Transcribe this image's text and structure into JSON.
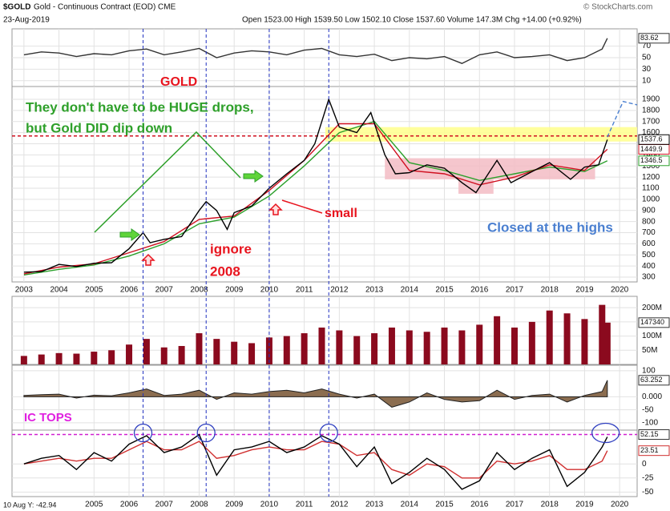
{
  "header": {
    "symbol": "$GOLD",
    "name": "Gold - Continuous Contract (EOD) CME",
    "date": "23-Aug-2019",
    "quote": "Open 1523.00 High 1539.50 Low 1502.10 Close 1537.60 Volume 147.3M Chg +14.00 (+0.92%)",
    "credit": "© StockCharts.com"
  },
  "footer": "10 Aug Y: -42.94",
  "annotations": [
    {
      "text": "GOLD",
      "color": "#e8141e"
    },
    {
      "text": "They don't have to be HUGE drops,",
      "color": "#2ea02a"
    },
    {
      "text": "but Gold DID dip down",
      "color": "#2ea02a"
    },
    {
      "text": "small",
      "color": "#e8141e"
    },
    {
      "text": "ignore",
      "color": "#e8141e"
    },
    {
      "text": "2008",
      "color": "#e8141e"
    },
    {
      "text": "Closed at the highs",
      "color": "#4a7fd0"
    },
    {
      "text": "IC TOPS",
      "color": "#e020e0"
    }
  ],
  "chart_data": [
    {
      "type": "line",
      "xlim": [
        2002.66,
        2020.5
      ],
      "ylim": [
        0,
        100
      ],
      "yticks": [
        10,
        30,
        50,
        70
      ],
      "x": [
        2003,
        2003.5,
        2004,
        2004.5,
        2005,
        2005.5,
        2006,
        2006.5,
        2007,
        2007.5,
        2008,
        2008.5,
        2009,
        2009.5,
        2010,
        2010.5,
        2011,
        2011.5,
        2012,
        2012.5,
        2013,
        2013.5,
        2014,
        2014.5,
        2015,
        2015.5,
        2016,
        2016.5,
        2017,
        2017.5,
        2018,
        2018.5,
        2019,
        2019.5,
        2019.65
      ],
      "series": [
        {
          "color": "#333333",
          "tag_color": "#333333",
          "values": [
            55,
            60,
            58,
            52,
            57,
            55,
            62,
            65,
            55,
            60,
            66,
            50,
            58,
            62,
            60,
            55,
            63,
            66,
            55,
            52,
            56,
            45,
            50,
            48,
            52,
            40,
            55,
            60,
            50,
            52,
            55,
            45,
            50,
            65,
            83.62
          ]
        }
      ]
    },
    {
      "type": "line",
      "xlim": [
        2002.66,
        2020.5
      ],
      "ylim": [
        257,
        2015
      ],
      "yticks": [
        300,
        400,
        500,
        600,
        700,
        800,
        900,
        1000,
        1100,
        1200,
        1300,
        1400,
        1500,
        1600,
        1700,
        1800,
        1900
      ],
      "xticks": [
        2003,
        2004,
        2005,
        2006,
        2007,
        2008,
        2009,
        2010,
        2011,
        2012,
        2013,
        2014,
        2015,
        2016,
        2017,
        2018,
        2019,
        2020
      ],
      "zones": [
        {
          "x": [
            2011.6,
            2020.5
          ],
          "y": [
            1520,
            1650
          ],
          "color": "#ffff8c"
        },
        {
          "x": [
            2013.3,
            2019.3
          ],
          "y": [
            1180,
            1370
          ],
          "color": "#f3bcc4"
        },
        {
          "x": [
            2015.4,
            2016.4
          ],
          "y": [
            1050,
            1180
          ],
          "color": "#f3bcc4"
        }
      ],
      "hline": {
        "value": 1570,
        "color": "#d01020"
      },
      "event_lines": [
        2006.4,
        2008.2,
        2010.0,
        2011.7
      ],
      "series": [
        {
          "color": "#2ca02c",
          "tag_color": "#2ca02c",
          "x": [
            2003,
            2004,
            2005,
            2006,
            2007,
            2008,
            2009,
            2010,
            2011,
            2012,
            2013,
            2014,
            2015,
            2016,
            2017,
            2018,
            2019,
            2019.65
          ],
          "values": [
            320,
            370,
            410,
            490,
            600,
            780,
            840,
            1030,
            1300,
            1600,
            1700,
            1330,
            1260,
            1170,
            1230,
            1290,
            1250,
            1346.5
          ]
        },
        {
          "color": "#d01020",
          "tag_color": "#d01020",
          "x": [
            2003,
            2004,
            2005,
            2006,
            2007,
            2008,
            2009,
            2010,
            2011,
            2012,
            2013,
            2014,
            2015,
            2016,
            2017,
            2018,
            2019,
            2019.65
          ],
          "values": [
            330,
            390,
            420,
            520,
            620,
            820,
            850,
            1080,
            1350,
            1680,
            1680,
            1260,
            1230,
            1130,
            1200,
            1310,
            1260,
            1449.9
          ]
        },
        {
          "color": "#000000",
          "tag_color": "#000000",
          "x": [
            2003,
            2003.5,
            2004,
            2004.5,
            2005,
            2005.5,
            2006,
            2006.4,
            2006.6,
            2007,
            2007.5,
            2008,
            2008.2,
            2008.5,
            2008.8,
            2009,
            2009.5,
            2010,
            2010.5,
            2011,
            2011.3,
            2011.7,
            2012,
            2012.5,
            2012.9,
            2013.3,
            2013.6,
            2014,
            2014.5,
            2015,
            2015.5,
            2015.9,
            2016.5,
            2016.9,
            2017.5,
            2018,
            2018.6,
            2019,
            2019.4,
            2019.65
          ],
          "values": [
            345,
            350,
            415,
            395,
            425,
            430,
            555,
            700,
            610,
            640,
            665,
            900,
            980,
            900,
            730,
            880,
            940,
            1100,
            1230,
            1350,
            1500,
            1900,
            1650,
            1600,
            1780,
            1400,
            1230,
            1240,
            1310,
            1280,
            1150,
            1060,
            1350,
            1150,
            1250,
            1330,
            1180,
            1290,
            1310,
            1537.6
          ]
        },
        {
          "color": "#4a7fd0",
          "dash": true,
          "x": [
            2019.65,
            2020.1,
            2020.5
          ],
          "values": [
            1560,
            1880,
            1850
          ]
        }
      ]
    },
    {
      "type": "bar",
      "xlim": [
        2002.66,
        2020.5
      ],
      "ylim": [
        0,
        240000000
      ],
      "yticks": [
        {
          "value": 50000000,
          "label": "50M"
        },
        {
          "value": 100000000,
          "label": "100M"
        },
        {
          "value": 150000000,
          "label": "150M"
        },
        {
          "value": 200000000,
          "label": "200M"
        }
      ],
      "last_label": "147340",
      "color": "#8b0a1e",
      "x": [
        2003,
        2003.5,
        2004,
        2004.5,
        2005,
        2005.5,
        2006,
        2006.5,
        2007,
        2007.5,
        2008,
        2008.5,
        2009,
        2009.5,
        2010,
        2010.5,
        2011,
        2011.5,
        2012,
        2012.5,
        2013,
        2013.5,
        2014,
        2014.5,
        2015,
        2015.5,
        2016,
        2016.5,
        2017,
        2017.5,
        2018,
        2018.5,
        2019,
        2019.5,
        2019.65
      ],
      "values": [
        30000000,
        35000000,
        40000000,
        38000000,
        45000000,
        50000000,
        70000000,
        90000000,
        60000000,
        65000000,
        110000000,
        90000000,
        80000000,
        75000000,
        95000000,
        100000000,
        110000000,
        130000000,
        120000000,
        100000000,
        110000000,
        130000000,
        120000000,
        115000000,
        130000000,
        120000000,
        140000000,
        170000000,
        130000000,
        150000000,
        190000000,
        180000000,
        160000000,
        210000000,
        147340000
      ]
    },
    {
      "type": "area",
      "xlim": [
        2002.66,
        2020.5
      ],
      "ylim": [
        -128,
        121
      ],
      "yticks": [
        100,
        {
          "value": 0,
          "label": "0.000"
        },
        -50,
        -100
      ],
      "color": "#8b6d50",
      "tag_color": "#333333",
      "x": [
        2003,
        2003.5,
        2004,
        2004.5,
        2005,
        2005.5,
        2006,
        2006.5,
        2007,
        2007.5,
        2008,
        2008.5,
        2009,
        2009.5,
        2010,
        2010.5,
        2011,
        2011.5,
        2012,
        2012.5,
        2013,
        2013.5,
        2014,
        2014.5,
        2015,
        2015.5,
        2016,
        2016.5,
        2017,
        2017.5,
        2018,
        2018.5,
        2019,
        2019.5,
        2019.65
      ],
      "values": [
        5,
        8,
        10,
        -5,
        6,
        4,
        15,
        30,
        5,
        10,
        25,
        -10,
        15,
        10,
        20,
        25,
        15,
        30,
        10,
        -5,
        10,
        -40,
        -20,
        15,
        -10,
        -20,
        -15,
        25,
        -10,
        5,
        10,
        -20,
        5,
        20,
        63.252
      ]
    },
    {
      "type": "line",
      "xlim": [
        2002.66,
        2020.5
      ],
      "ylim": [
        -58,
        60
      ],
      "yticks": [
        0,
        -25,
        -50
      ],
      "xticks": [
        2005,
        2006,
        2007,
        2008,
        2009,
        2010,
        2011,
        2012,
        2013,
        2014,
        2015,
        2016,
        2017,
        2018,
        2019,
        2020
      ],
      "hline": {
        "value": 52.15,
        "color": "#d020d0",
        "tag_color": "#333333"
      },
      "tops": [
        2006.4,
        2008.2,
        2011.7,
        2019.6
      ],
      "x": [
        2003,
        2003.5,
        2004,
        2004.5,
        2005,
        2005.5,
        2006,
        2006.5,
        2007,
        2007.5,
        2008,
        2008.5,
        2009,
        2009.5,
        2010,
        2010.5,
        2011,
        2011.5,
        2012,
        2012.5,
        2013,
        2013.5,
        2014,
        2014.5,
        2015,
        2015.5,
        2016,
        2016.5,
        2017,
        2017.5,
        2018,
        2018.5,
        2019,
        2019.5,
        2019.65
      ],
      "series": [
        {
          "color": "#d03030",
          "tag_color": "#d03030",
          "values": [
            0,
            5,
            10,
            5,
            10,
            10,
            25,
            40,
            25,
            25,
            40,
            10,
            15,
            25,
            30,
            25,
            25,
            40,
            35,
            15,
            20,
            -10,
            -20,
            0,
            -5,
            -25,
            -25,
            5,
            0,
            5,
            15,
            -10,
            -10,
            5,
            23.51
          ]
        },
        {
          "color": "#000000",
          "values": [
            0,
            10,
            15,
            -10,
            20,
            5,
            35,
            50,
            20,
            30,
            52,
            -20,
            25,
            30,
            40,
            20,
            30,
            50,
            35,
            -5,
            30,
            -35,
            -15,
            10,
            -10,
            -45,
            -30,
            20,
            -10,
            10,
            25,
            -40,
            -15,
            30,
            48
          ]
        }
      ]
    }
  ]
}
